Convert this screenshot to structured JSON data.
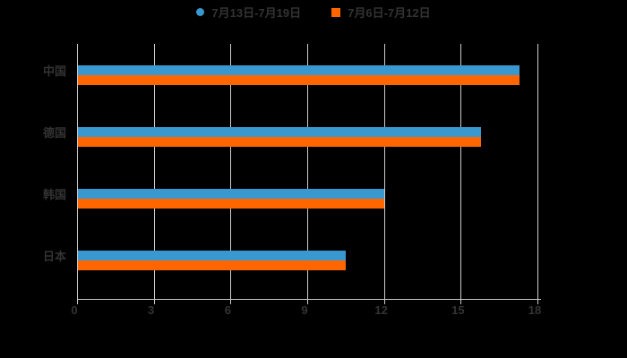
{
  "chart_data": {
    "type": "bar",
    "orientation": "horizontal",
    "title": "",
    "categories": [
      "中国",
      "德国",
      "韩国",
      "日本"
    ],
    "series": [
      {
        "name": "7月13日-7月19日",
        "color": "#3a98d1",
        "marker": "circle",
        "values": [
          17.3,
          15.8,
          12,
          10.5
        ]
      },
      {
        "name": "7月6日-7月12日",
        "color": "#ff6600",
        "marker": "square",
        "values": [
          17.3,
          15.8,
          12,
          10.5
        ]
      }
    ],
    "xlim": [
      0,
      18
    ],
    "xticks": [
      0,
      3,
      6,
      9,
      12,
      15,
      18
    ],
    "legend_position": "top-center",
    "grid": "vertical-only"
  },
  "colors": {
    "background": "#000000",
    "text": "#333333",
    "gridline": "#cccccc",
    "axis": "#c9c9c9"
  }
}
